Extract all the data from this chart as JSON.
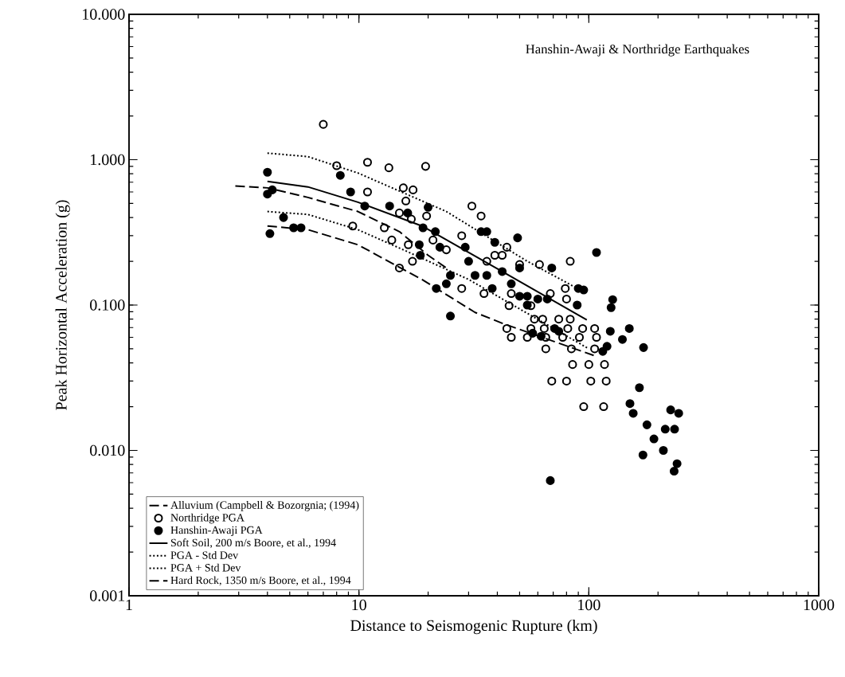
{
  "chart_data": {
    "type": "scatter",
    "title": "Hanshin-Awaji & Northridge Earthquakes",
    "xlabel": "Distance to Seismogenic Rupture (km)",
    "ylabel": "Peak Horizontal Acceleration (g)",
    "log": "xy",
    "grid": false,
    "legend": "bottom left",
    "xlim": [
      1,
      1000
    ],
    "ylim": [
      0.001,
      10
    ],
    "xticks": [
      1,
      10,
      100,
      1000
    ],
    "yticks": [
      {
        "value": 0.001,
        "label": "0.001"
      },
      {
        "value": 0.01,
        "label": "0.010"
      },
      {
        "value": 0.1,
        "label": "0.100"
      },
      {
        "value": 1,
        "label": "1.000"
      },
      {
        "value": 10,
        "label": "10.000"
      }
    ],
    "series": [
      {
        "name": "Alluvium (Campbell & Bozorgnia; (1994)",
        "type": "line",
        "line_style": "dashed",
        "marker": "none",
        "color": "#000000",
        "x": [
          2.9,
          4,
          6,
          9.9,
          15,
          20,
          24
        ],
        "values": [
          0.66,
          0.64,
          0.55,
          0.44,
          0.32,
          0.22,
          0.18
        ]
      },
      {
        "name": "Northridge PGA",
        "type": "scatter",
        "marker": "circle-open",
        "color": "#000000",
        "x": [
          7.0,
          8.0,
          9.4,
          10.9,
          13.5,
          19.5,
          15.6,
          17.2,
          10.9,
          19.7,
          16,
          31,
          34,
          15,
          16.9,
          12.9,
          13.9,
          16.4,
          17.1,
          15,
          21,
          24,
          28,
          28,
          36,
          39,
          42,
          44,
          61,
          83,
          68,
          80,
          46,
          45,
          56,
          58,
          63,
          74,
          83,
          44,
          56,
          64,
          81,
          94,
          106,
          46,
          54,
          65,
          77,
          91,
          108,
          65,
          84,
          106,
          85,
          100,
          117,
          69,
          80,
          102,
          119,
          95,
          116,
          50,
          79,
          35
        ],
        "values": [
          1.75,
          0.91,
          0.35,
          0.96,
          0.88,
          0.9,
          0.64,
          0.62,
          0.6,
          0.41,
          0.52,
          0.48,
          0.41,
          0.43,
          0.39,
          0.34,
          0.28,
          0.26,
          0.2,
          0.18,
          0.28,
          0.24,
          0.3,
          0.13,
          0.2,
          0.22,
          0.22,
          0.25,
          0.19,
          0.2,
          0.12,
          0.11,
          0.12,
          0.099,
          0.099,
          0.08,
          0.08,
          0.08,
          0.08,
          0.069,
          0.069,
          0.069,
          0.069,
          0.069,
          0.069,
          0.06,
          0.06,
          0.06,
          0.06,
          0.06,
          0.06,
          0.05,
          0.05,
          0.05,
          0.039,
          0.039,
          0.039,
          0.03,
          0.03,
          0.03,
          0.03,
          0.02,
          0.02,
          0.19,
          0.13,
          0.12
        ]
      },
      {
        "name": "Hanshin-Awaji PGA",
        "type": "scatter",
        "marker": "circle",
        "color": "#000000",
        "x": [
          4.0,
          4.0,
          4.2,
          4.1,
          4.7,
          5.2,
          5.6,
          8.3,
          9.2,
          10.6,
          13.6,
          20,
          16.3,
          19,
          21.5,
          18.3,
          22.5,
          18.5,
          25,
          24,
          21.7,
          25,
          29,
          34,
          36,
          49,
          39,
          30,
          32,
          36,
          38,
          42,
          46,
          50,
          54,
          60,
          69,
          50,
          54,
          66,
          71,
          89,
          90,
          62,
          57,
          74,
          95,
          127,
          125,
          124,
          150,
          140,
          173,
          120,
          115,
          166,
          151,
          156,
          179,
          227,
          246,
          215,
          236,
          192,
          172,
          211,
          242,
          235,
          68,
          108
        ],
        "values": [
          0.82,
          0.58,
          0.62,
          0.31,
          0.4,
          0.34,
          0.34,
          0.78,
          0.6,
          0.48,
          0.48,
          0.47,
          0.43,
          0.34,
          0.32,
          0.26,
          0.25,
          0.22,
          0.16,
          0.14,
          0.13,
          0.084,
          0.25,
          0.32,
          0.32,
          0.29,
          0.27,
          0.2,
          0.16,
          0.16,
          0.13,
          0.17,
          0.14,
          0.115,
          0.115,
          0.11,
          0.18,
          0.18,
          0.1,
          0.11,
          0.069,
          0.1,
          0.13,
          0.061,
          0.064,
          0.066,
          0.127,
          0.109,
          0.096,
          0.066,
          0.069,
          0.058,
          0.051,
          0.052,
          0.048,
          0.027,
          0.021,
          0.018,
          0.015,
          0.019,
          0.018,
          0.014,
          0.014,
          0.012,
          0.0093,
          0.01,
          0.0081,
          0.0072,
          0.0062,
          0.23
        ]
      },
      {
        "name": "Soft Soil, 200 m/s Boore, et al., 1994",
        "type": "line",
        "line_style": "solid",
        "marker": "none",
        "color": "#000000",
        "x": [
          4,
          6,
          9.9,
          18.8,
          42,
          98
        ],
        "values": [
          0.71,
          0.65,
          0.51,
          0.35,
          0.17,
          0.079
        ]
      },
      {
        "name": "PGA - Std Dev",
        "type": "line",
        "line_style": "dotted",
        "marker": "none",
        "color": "#000000",
        "x": [
          4,
          6,
          9.9,
          15.6,
          30,
          100
        ],
        "values": [
          0.44,
          0.42,
          0.33,
          0.24,
          0.15,
          0.05
        ]
      },
      {
        "name": "PGA + Std Dev",
        "type": "line",
        "line_style": "dotted",
        "marker": "none",
        "color": "#000000",
        "x": [
          4,
          6,
          9.9,
          24,
          54,
          98
        ],
        "values": [
          1.11,
          1.05,
          0.81,
          0.44,
          0.2,
          0.12
        ]
      },
      {
        "name": "Hard Rock, 1350 m/s Boore, et al., 1994",
        "type": "line",
        "line_style": "dashed",
        "marker": "none",
        "color": "#000000",
        "x": [
          4,
          6,
          9.9,
          18.8,
          32,
          42,
          105
        ],
        "values": [
          0.35,
          0.33,
          0.26,
          0.15,
          0.089,
          0.075,
          0.045
        ]
      }
    ]
  }
}
